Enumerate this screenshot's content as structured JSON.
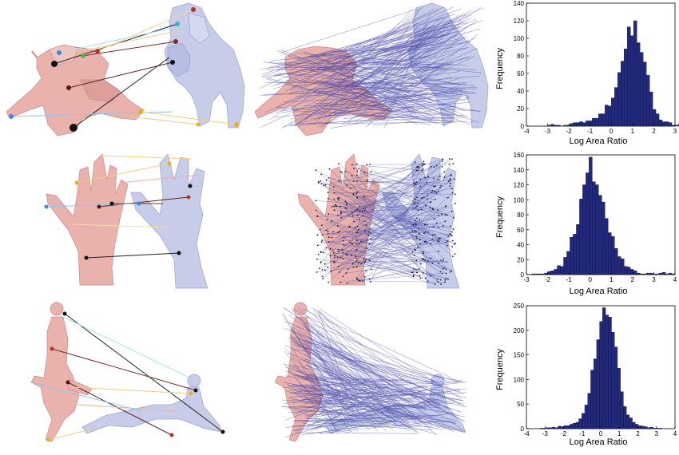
{
  "rows": [
    {
      "name": "cat",
      "chart_data": {
        "type": "bar",
        "xlabel": "Log Area Ratio",
        "ylabel": "Frequency",
        "xlim": [
          -4,
          3
        ],
        "ylim": [
          0,
          140
        ],
        "xticks": [
          "-4",
          "-3",
          "-2",
          "-1",
          "0",
          "1",
          "2",
          "3"
        ],
        "yticks": [
          "0",
          "20",
          "40",
          "60",
          "80",
          "100",
          "120",
          "140"
        ],
        "bin_start": -3.9,
        "bin_width": 0.15,
        "values": [
          0,
          0,
          0,
          0,
          0,
          0,
          1,
          2,
          1,
          1,
          0,
          1,
          1,
          3,
          4,
          4,
          5,
          4,
          6,
          6,
          9,
          9,
          14,
          14,
          24,
          23,
          32,
          44,
          61,
          74,
          88,
          113,
          103,
          120,
          95,
          84,
          73,
          58,
          39,
          19,
          14,
          7,
          5,
          5,
          4,
          1,
          1,
          2,
          0
        ]
      }
    },
    {
      "name": "hand",
      "chart_data": {
        "type": "bar",
        "xlabel": "Log Area Ratio",
        "ylabel": "Frequency",
        "xlim": [
          -3,
          4
        ],
        "ylim": [
          0,
          160
        ],
        "xticks": [
          "-3",
          "-2",
          "-1",
          "0",
          "1",
          "2",
          "3",
          "4"
        ],
        "yticks": [
          "0",
          "20",
          "40",
          "60",
          "80",
          "100",
          "120",
          "140",
          "160"
        ],
        "bin_start": -2.9,
        "bin_width": 0.15,
        "values": [
          0,
          1,
          1,
          1,
          1,
          2,
          4,
          5,
          7,
          12,
          11,
          23,
          31,
          50,
          54,
          67,
          101,
          120,
          136,
          157,
          124,
          120,
          106,
          97,
          75,
          56,
          51,
          35,
          24,
          21,
          11,
          10,
          7,
          5,
          2,
          1,
          1,
          2,
          2,
          1,
          1,
          2,
          3,
          1,
          2,
          1,
          0
        ]
      }
    },
    {
      "name": "human",
      "chart_data": {
        "type": "bar",
        "xlabel": "Log Area Ratio",
        "ylabel": "Frequency",
        "xlim": [
          -4,
          4
        ],
        "ylim": [
          0,
          250
        ],
        "xticks": [
          "-4",
          "-3",
          "-2",
          "-1",
          "0",
          "1",
          "2",
          "3",
          "4"
        ],
        "yticks": [
          "0",
          "50",
          "100",
          "150",
          "200",
          "250"
        ],
        "bin_start": -3.9,
        "bin_width": 0.16,
        "values": [
          0,
          0,
          0,
          0,
          1,
          1,
          2,
          2,
          3,
          2,
          5,
          4,
          6,
          6,
          9,
          11,
          13,
          20,
          31,
          48,
          72,
          119,
          142,
          181,
          218,
          246,
          231,
          227,
          196,
          166,
          123,
          75,
          45,
          28,
          22,
          13,
          9,
          6,
          5,
          4,
          2,
          3,
          1,
          1,
          1,
          0
        ]
      }
    }
  ]
}
